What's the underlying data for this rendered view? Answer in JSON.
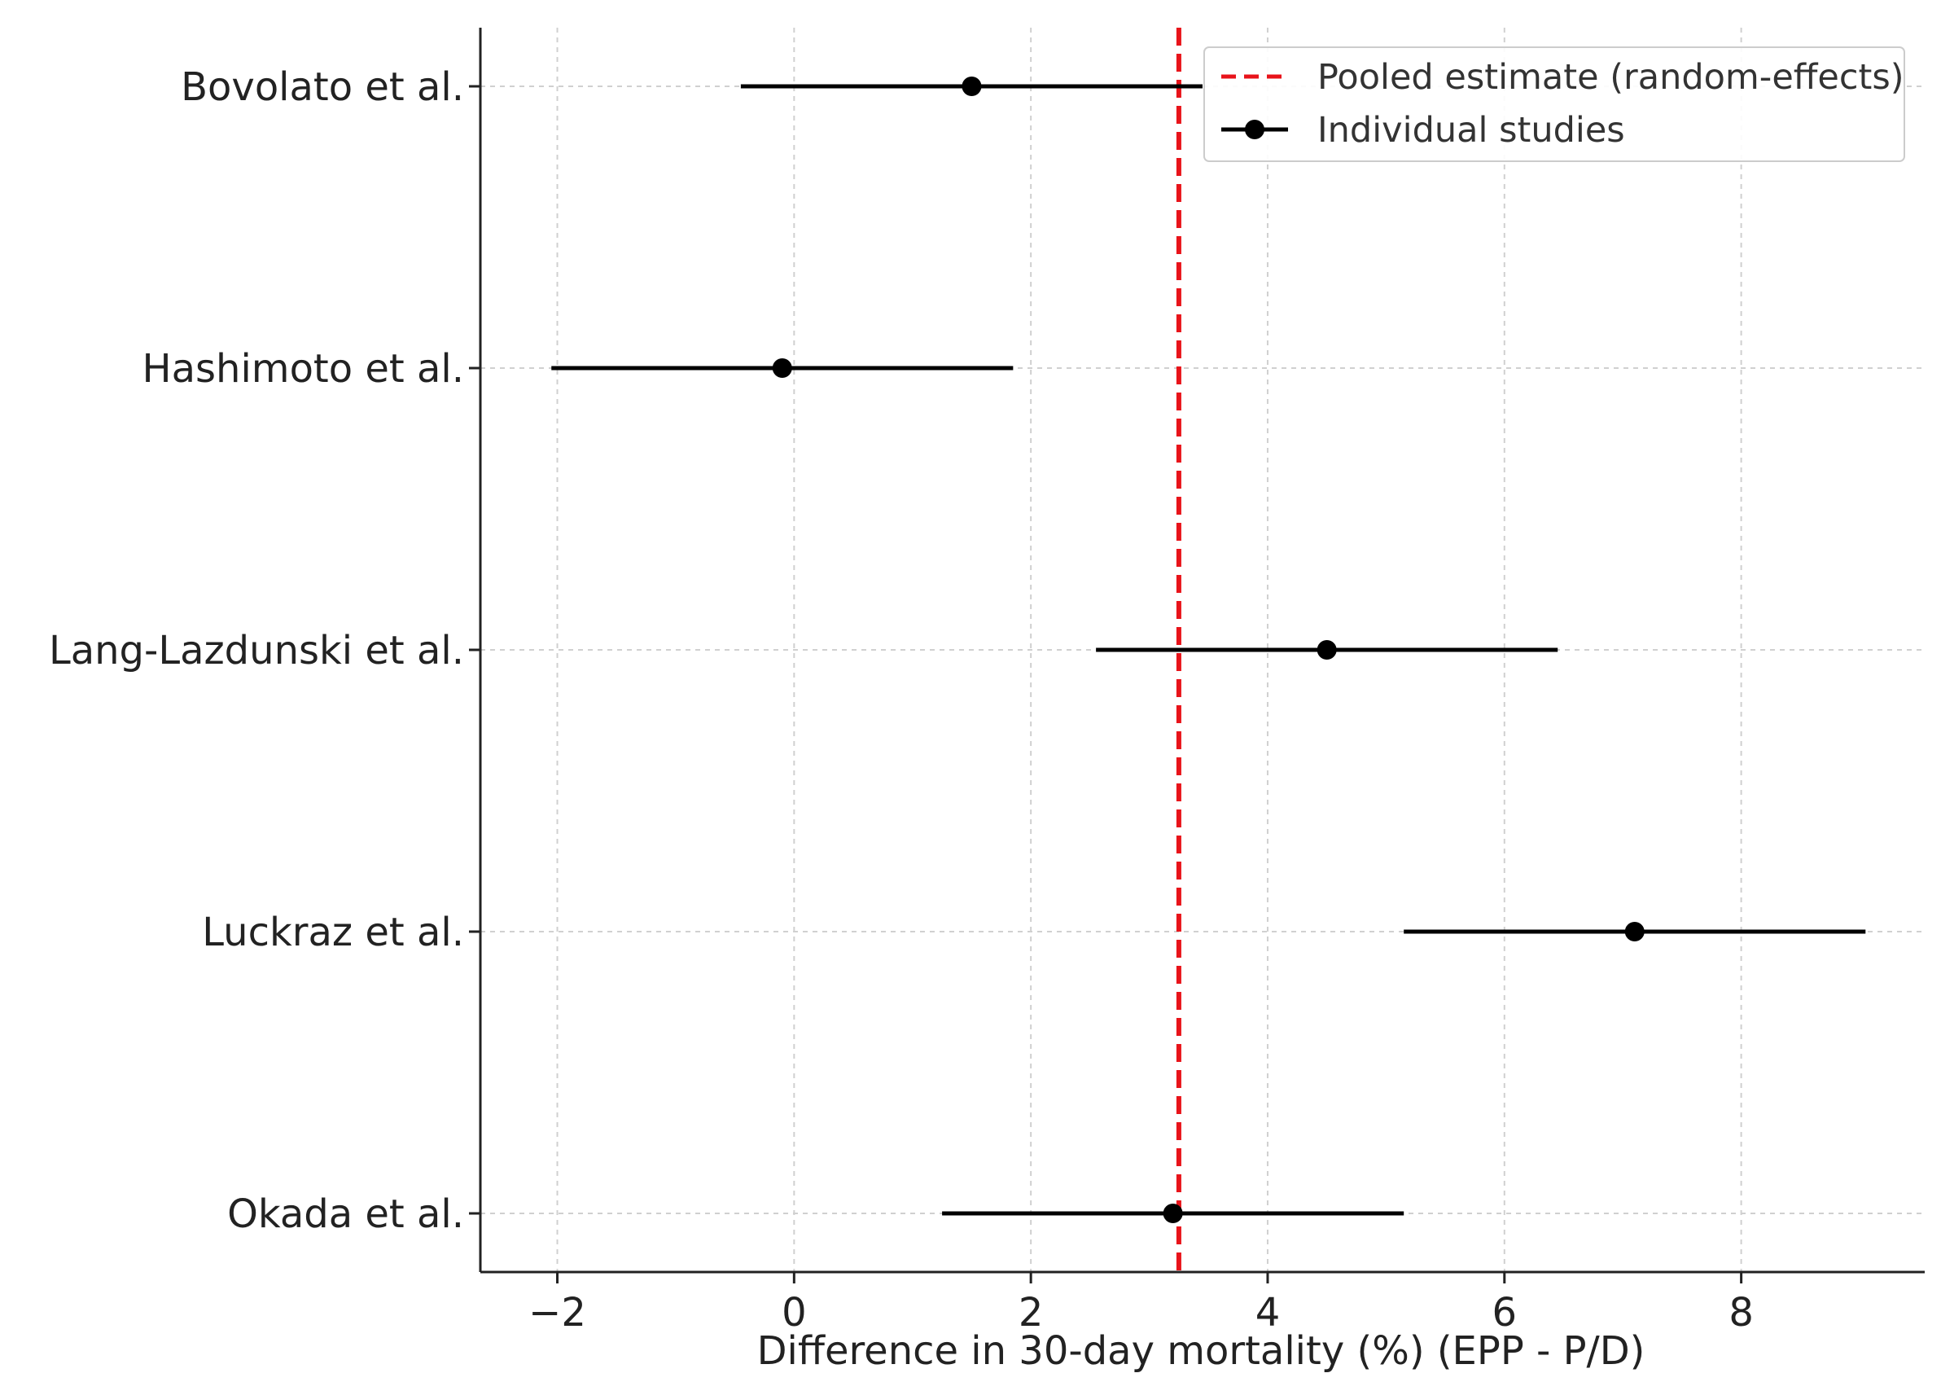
{
  "chart_data": {
    "type": "forest",
    "title": "",
    "xlabel": "Difference in 30-day mortality (%) (EPP - P/D)",
    "ylabel": "",
    "xlim": [
      -2.65,
      9.55
    ],
    "xticks": [
      -2,
      0,
      2,
      4,
      6,
      8
    ],
    "xtick_labels": [
      "−2",
      "0",
      "2",
      "4",
      "6",
      "8"
    ],
    "grid": true,
    "studies": [
      {
        "name": "Bovolato et al.",
        "estimate": 1.5,
        "ci_low": -0.45,
        "ci_high": 3.45
      },
      {
        "name": "Hashimoto et al.",
        "estimate": -0.1,
        "ci_low": -2.05,
        "ci_high": 1.85
      },
      {
        "name": "Lang-Lazdunski et al.",
        "estimate": 4.5,
        "ci_low": 2.55,
        "ci_high": 6.45
      },
      {
        "name": "Luckraz et al.",
        "estimate": 7.1,
        "ci_low": 5.15,
        "ci_high": 9.05
      },
      {
        "name": "Okada et al.",
        "estimate": 3.2,
        "ci_low": 1.25,
        "ci_high": 5.15
      }
    ],
    "pooled_estimate": 3.25,
    "legend": {
      "placement": "top-right",
      "pooled_label": "Pooled estimate (random-effects)",
      "studies_label": "Individual studies"
    },
    "colors": {
      "pooled": "#e8131a",
      "points": "#000000",
      "axis": "#222222",
      "grid": "#d0d0d0"
    }
  }
}
